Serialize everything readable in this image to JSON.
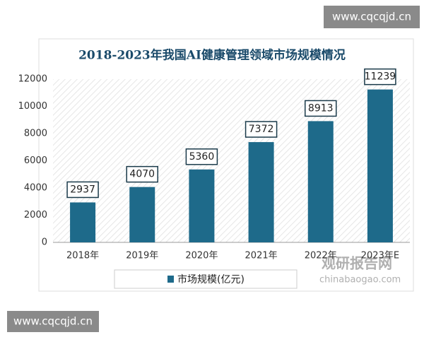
{
  "chart_data": {
    "type": "bar",
    "title": "2018-2023年我国AI健康管理领域市场规模情况",
    "categories": [
      "2018年",
      "2019年",
      "2020年",
      "2021年",
      "2022年",
      "2023年E"
    ],
    "series": [
      {
        "name": "市场规模(亿元)",
        "color": "#1e6a8a",
        "values": [
          2937,
          4070,
          5360,
          7372,
          8913,
          11239
        ]
      }
    ],
    "ylim": [
      0,
      12000
    ],
    "yticks": [
      0,
      2000,
      4000,
      6000,
      8000,
      10000,
      12000
    ],
    "grid": false,
    "legend": "bottom"
  },
  "watermarks": [
    "www.cqcqjd.cn",
    "www.cqcqjd.cn"
  ],
  "source_logo": {
    "name": "观研报告网",
    "site": "chinabaogao.com"
  }
}
